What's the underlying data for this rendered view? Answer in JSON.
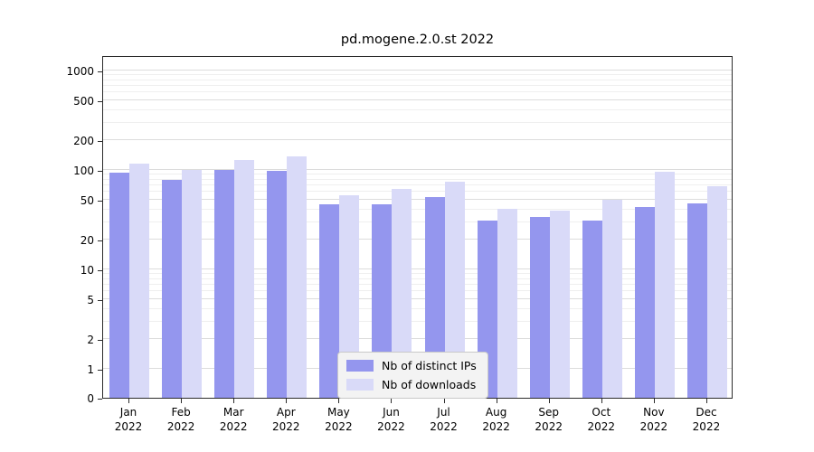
{
  "title": "pd.mogene.2.0.st 2022",
  "chart_data": {
    "type": "bar",
    "title": "pd.mogene.2.0.st 2022",
    "categories": [
      "Jan 2022",
      "Feb 2022",
      "Mar 2022",
      "Apr 2022",
      "May 2022",
      "Jun 2022",
      "Jul 2022",
      "Aug 2022",
      "Sep 2022",
      "Oct 2022",
      "Nov 2022",
      "Dec 2022"
    ],
    "series": [
      {
        "name": "Nb of distinct IPs",
        "color": "#9496ee",
        "values": [
          93,
          80,
          100,
          97,
          45,
          45,
          53,
          31,
          34,
          31,
          42,
          46
        ]
      },
      {
        "name": "Nb of downloads",
        "color": "#d9daf8",
        "values": [
          115,
          100,
          127,
          136,
          56,
          65,
          76,
          41,
          39,
          50,
          95,
          68
        ]
      }
    ],
    "xlabel": "",
    "ylabel": "",
    "yscale": "symlog",
    "yticks": [
      0,
      1,
      2,
      5,
      10,
      20,
      50,
      100,
      200,
      500,
      1000
    ],
    "ylim": [
      0,
      1400
    ],
    "grid": true,
    "legend_position": "lower center"
  }
}
